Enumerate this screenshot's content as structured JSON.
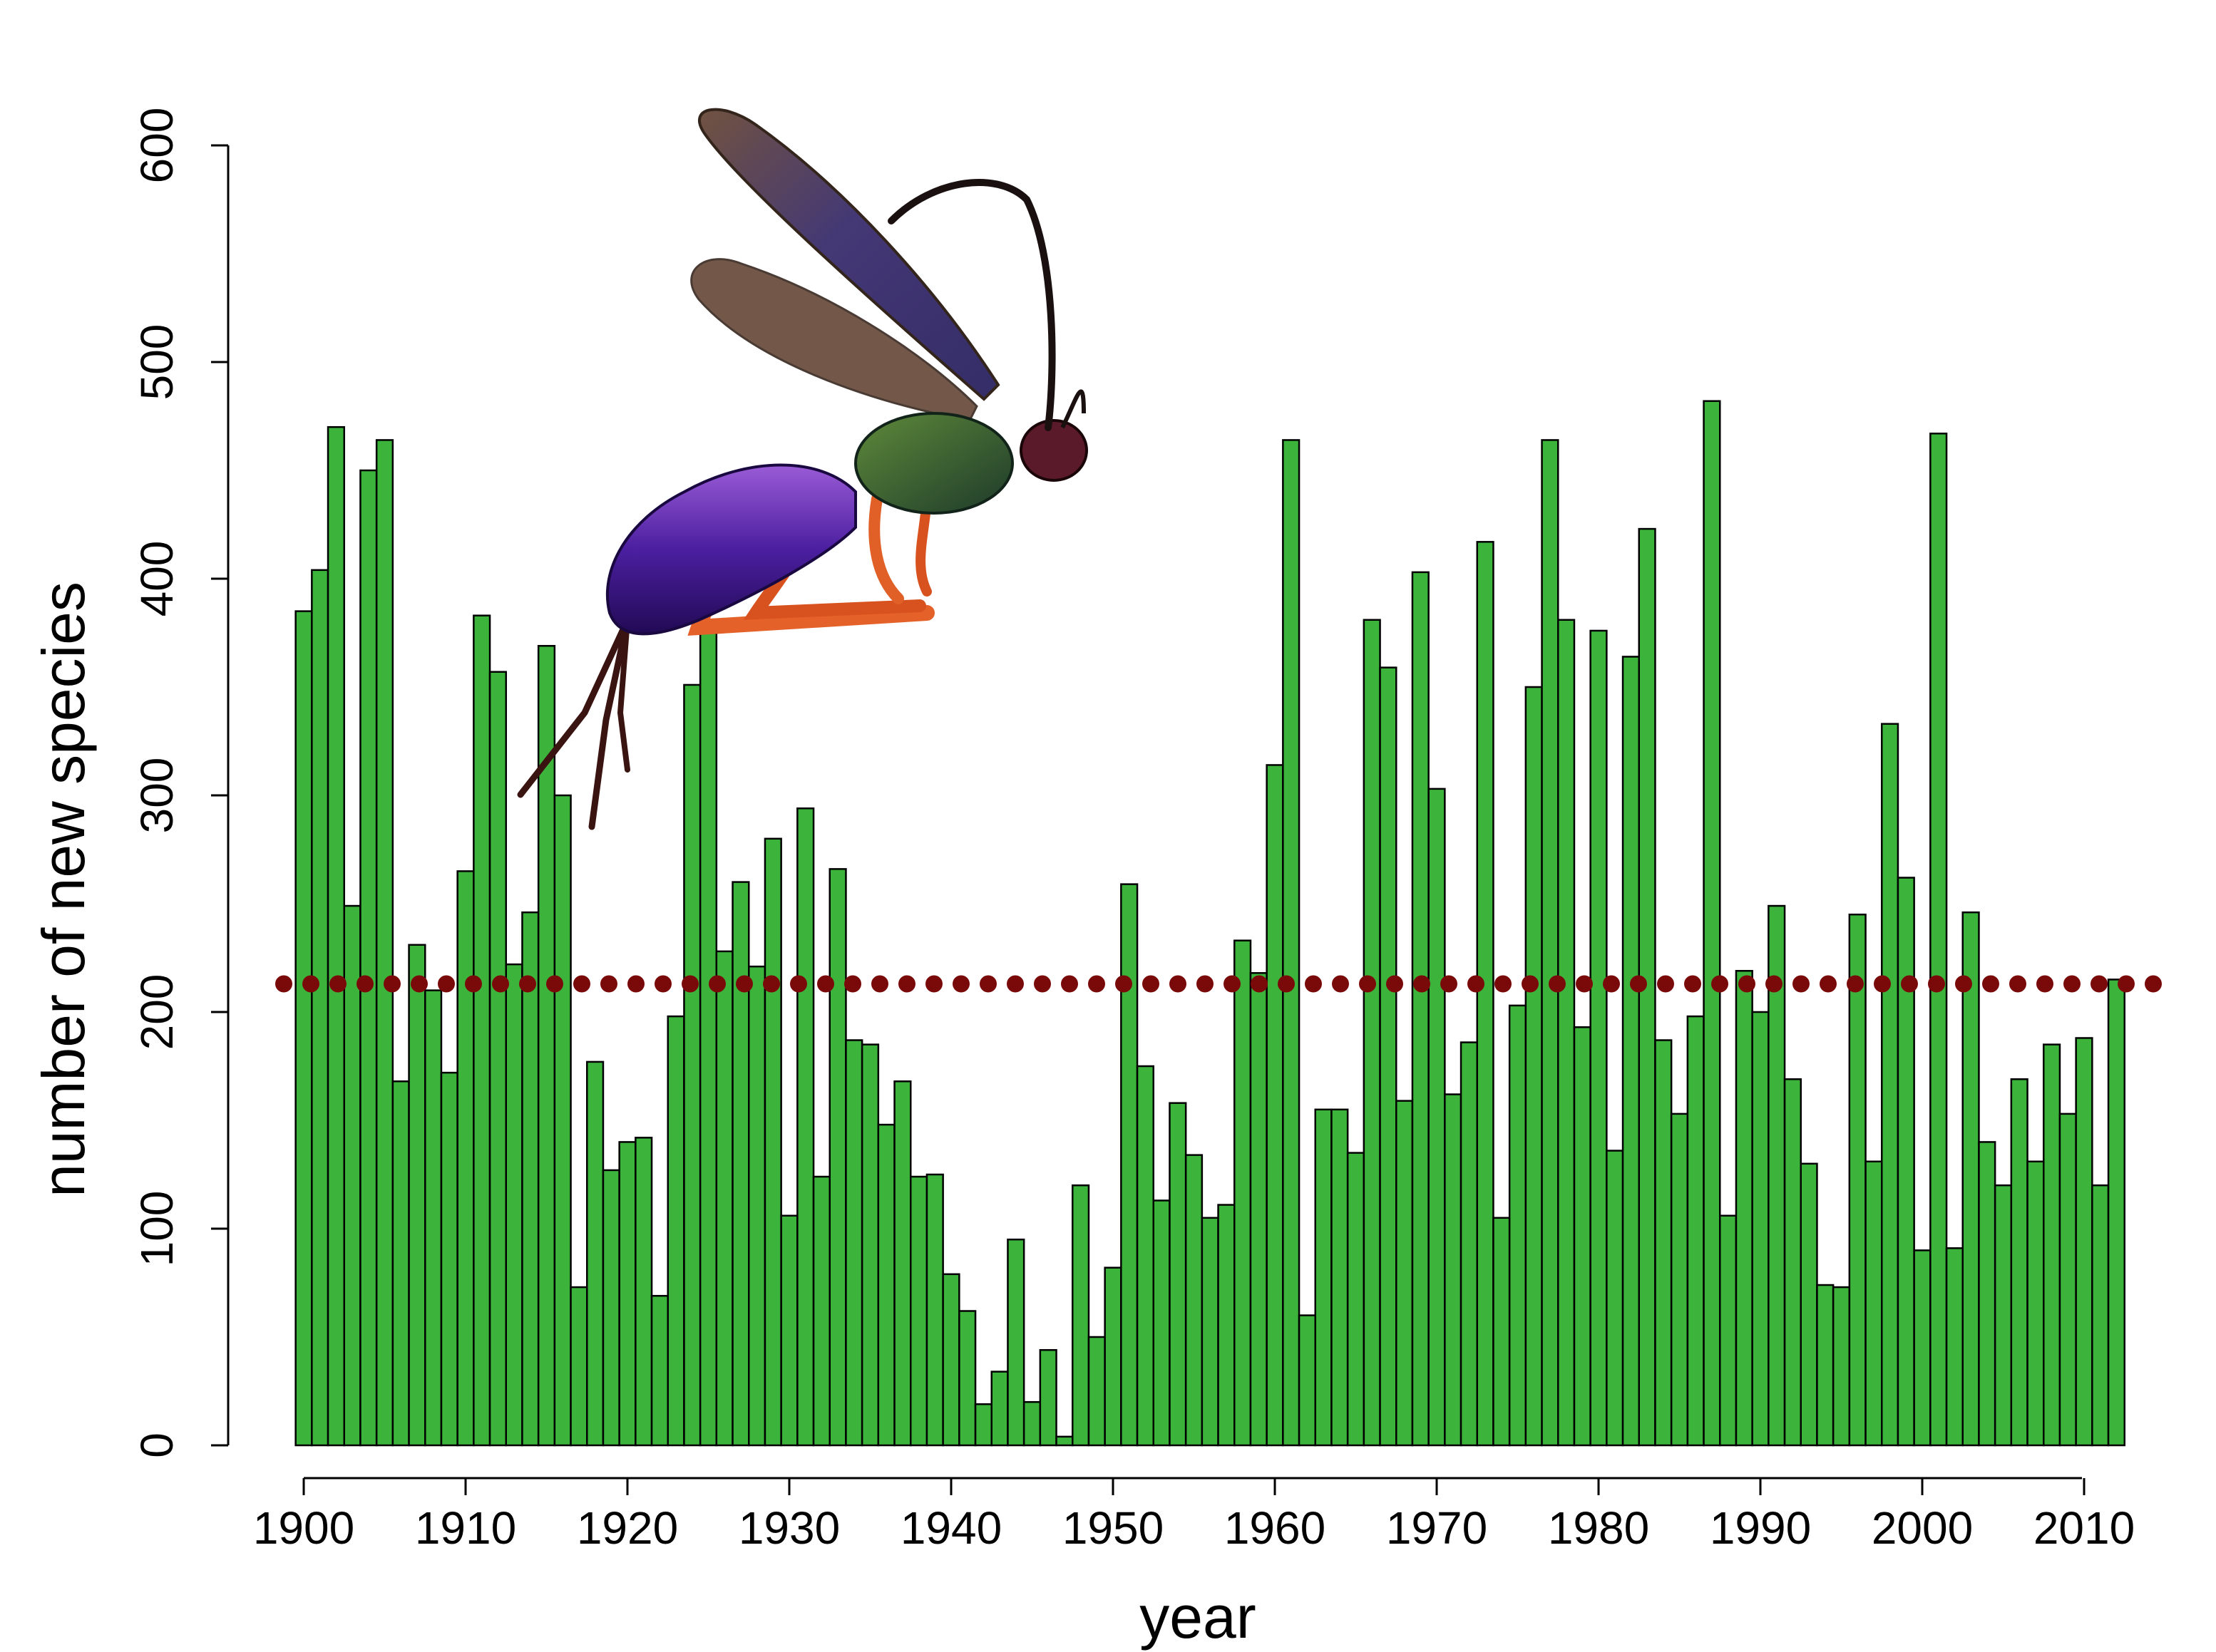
{
  "chart_data": {
    "type": "bar",
    "title": "",
    "xlabel": "year",
    "ylabel": "number of new species",
    "xlim": [
      1900,
      2013
    ],
    "ylim": [
      0,
      600
    ],
    "x_ticks": [
      "1900",
      "1910",
      "1920",
      "1930",
      "1940",
      "1950",
      "1960",
      "1970",
      "1980",
      "1990",
      "2000",
      "2010"
    ],
    "y_ticks": [
      "0",
      "100",
      "200",
      "300",
      "400",
      "500",
      "600"
    ],
    "x": [
      1900,
      1901,
      1902,
      1903,
      1904,
      1905,
      1906,
      1907,
      1908,
      1909,
      1910,
      1911,
      1912,
      1913,
      1914,
      1915,
      1916,
      1917,
      1918,
      1919,
      1920,
      1921,
      1922,
      1923,
      1924,
      1925,
      1926,
      1927,
      1928,
      1929,
      1930,
      1931,
      1932,
      1933,
      1934,
      1935,
      1936,
      1937,
      1938,
      1939,
      1940,
      1941,
      1942,
      1943,
      1944,
      1945,
      1946,
      1947,
      1948,
      1949,
      1950,
      1951,
      1952,
      1953,
      1954,
      1955,
      1956,
      1957,
      1958,
      1959,
      1960,
      1961,
      1962,
      1963,
      1964,
      1965,
      1966,
      1967,
      1968,
      1969,
      1970,
      1971,
      1972,
      1973,
      1974,
      1975,
      1976,
      1977,
      1978,
      1979,
      1980,
      1981,
      1982,
      1983,
      1984,
      1985,
      1986,
      1987,
      1988,
      1989,
      1990,
      1991,
      1992,
      1993,
      1994,
      1995,
      1996,
      1997,
      1998,
      1999,
      2000,
      2001,
      2002,
      2003,
      2004,
      2005,
      2006,
      2007,
      2008,
      2009,
      2010,
      2011,
      2012
    ],
    "values": [
      385,
      404,
      470,
      249,
      450,
      464,
      168,
      231,
      210,
      172,
      265,
      383,
      357,
      222,
      246,
      369,
      300,
      73,
      177,
      127,
      140,
      142,
      69,
      198,
      351,
      381,
      228,
      260,
      221,
      280,
      106,
      294,
      124,
      266,
      187,
      185,
      148,
      168,
      124,
      125,
      79,
      62,
      19,
      34,
      95,
      20,
      44,
      4,
      120,
      50,
      82,
      259,
      175,
      113,
      158,
      134,
      105,
      111,
      233,
      218,
      314,
      464,
      60,
      155,
      155,
      135,
      381,
      359,
      159,
      403,
      303,
      162,
      186,
      417,
      105,
      203,
      350,
      464,
      381,
      193,
      376,
      136,
      364,
      423,
      187,
      153,
      198,
      482,
      106,
      219,
      200,
      249,
      169,
      130,
      74,
      73,
      245,
      131,
      333,
      262,
      90,
      467,
      91,
      246,
      140,
      120,
      169,
      131,
      185,
      153,
      188,
      120,
      215
    ],
    "reference_line": {
      "value": 213,
      "style": "dotted"
    },
    "bar_color": "#3cb43c",
    "bar_edge_color": "#000000",
    "line_color": "#7a0a0a",
    "grid": false,
    "legend": "none",
    "image_overlay": {
      "icon": "wasp-icon",
      "location": "upper-left"
    }
  }
}
